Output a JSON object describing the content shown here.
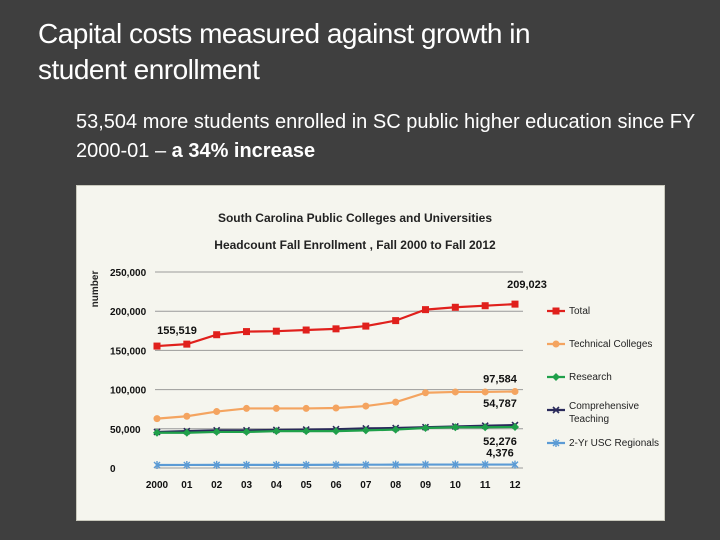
{
  "slide": {
    "title_line1": "Capital costs measured against growth in",
    "title_line2": "student enrollment",
    "body_prefix": "53,504",
    "body_middle": "  more students  enrolled in SC public higher education since FY 2000-01 – ",
    "body_bold": "a 34% increase"
  },
  "chart_data": {
    "type": "line",
    "title": "South Carolina Public Colleges and Universities",
    "subtitle": "Headcount Fall Enrollment , Fall 2000 to Fall 2012",
    "ylabel": "number",
    "xlabel": "",
    "ylim": [
      0,
      250000
    ],
    "yticks": [
      0,
      50000,
      100000,
      150000,
      200000,
      250000
    ],
    "ytick_labels": [
      "0",
      "50,000",
      "100,000",
      "150,000",
      "200,000",
      "250,000"
    ],
    "categories": [
      "2000",
      "01",
      "02",
      "03",
      "04",
      "05",
      "06",
      "07",
      "08",
      "09",
      "10",
      "11",
      "12"
    ],
    "grid": "horizontal",
    "legend_position": "right",
    "series": [
      {
        "name": "Total",
        "color": "#e0201c",
        "marker": "square",
        "values": [
          155519,
          158000,
          170000,
          174000,
          174500,
          176000,
          177500,
          181000,
          188000,
          202000,
          205000,
          207000,
          209023
        ]
      },
      {
        "name": "Technical Colleges",
        "color": "#f4a460",
        "marker": "circle",
        "values": [
          63000,
          66000,
          72000,
          76000,
          76000,
          76000,
          76500,
          79000,
          84000,
          96000,
          97000,
          97000,
          97584
        ]
      },
      {
        "name": "Research",
        "color": "#1fa04a",
        "marker": "diamond",
        "values": [
          45000,
          45000,
          46000,
          46000,
          47000,
          47000,
          47000,
          48000,
          49000,
          51000,
          52000,
          52000,
          52276
        ]
      },
      {
        "name": "Comprehensive Teaching",
        "color": "#2a2a5a",
        "marker": "x",
        "values": [
          46000,
          47000,
          48000,
          48000,
          48500,
          49000,
          49500,
          50500,
          51000,
          52000,
          53000,
          54000,
          54787
        ]
      },
      {
        "name": "2-Yr USC Regionals",
        "color": "#5b9bd5",
        "marker": "cross",
        "values": [
          3800,
          3900,
          4000,
          4000,
          4000,
          4000,
          4100,
          4200,
          4300,
          4400,
          4400,
          4400,
          4376
        ]
      }
    ],
    "annotations": [
      "155,519",
      "209,023",
      "97,584",
      "54,787",
      "52,276",
      "4,376"
    ]
  }
}
